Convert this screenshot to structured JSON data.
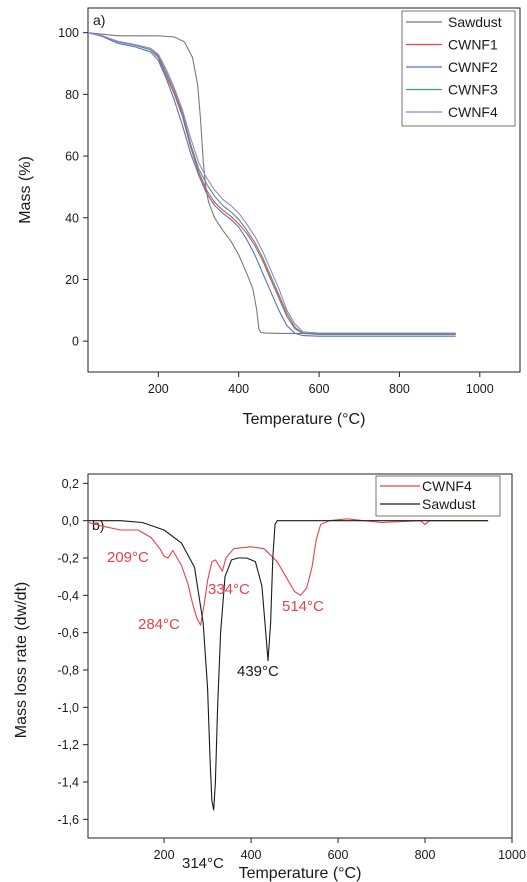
{
  "chart_data": [
    {
      "type": "line",
      "panel_label": "a)",
      "xlabel": "Temperature (°C)",
      "ylabel": "Mass (%)",
      "xlim": [
        25,
        1100
      ],
      "ylim": [
        -10,
        108
      ],
      "x_ticks": [
        200,
        400,
        600,
        800,
        1000
      ],
      "y_ticks": [
        0,
        20,
        40,
        60,
        80,
        100
      ],
      "grid": false,
      "legend": "top-right",
      "series": [
        {
          "name": "Sawdust",
          "color": "#7a7a7a",
          "points": [
            [
              25,
              100
            ],
            [
              60,
              99.5
            ],
            [
              100,
              99
            ],
            [
              150,
              99
            ],
            [
              200,
              99
            ],
            [
              240,
              98.6
            ],
            [
              265,
              97
            ],
            [
              285,
              92
            ],
            [
              298,
              83
            ],
            [
              305,
              72
            ],
            [
              312,
              58
            ],
            [
              318,
              50
            ],
            [
              325,
              45
            ],
            [
              340,
              40
            ],
            [
              360,
              36
            ],
            [
              380,
              32.5
            ],
            [
              400,
              28
            ],
            [
              420,
              22
            ],
            [
              435,
              17
            ],
            [
              445,
              10
            ],
            [
              450,
              4
            ],
            [
              455,
              2.8
            ],
            [
              470,
              2.6
            ],
            [
              500,
              2.5
            ],
            [
              600,
              2.5
            ],
            [
              700,
              2.5
            ],
            [
              800,
              2.5
            ],
            [
              940,
              2.5
            ]
          ]
        },
        {
          "name": "CWNF1",
          "color": "#e8424a",
          "points": [
            [
              25,
              100
            ],
            [
              60,
              99
            ],
            [
              100,
              97
            ],
            [
              140,
              96
            ],
            [
              180,
              94.5
            ],
            [
              200,
              92
            ],
            [
              220,
              86
            ],
            [
              240,
              80
            ],
            [
              260,
              73
            ],
            [
              280,
              63
            ],
            [
              300,
              55
            ],
            [
              320,
              49
            ],
            [
              340,
              45
            ],
            [
              360,
              42.5
            ],
            [
              380,
              40.5
            ],
            [
              400,
              38
            ],
            [
              420,
              35
            ],
            [
              440,
              31
            ],
            [
              460,
              26
            ],
            [
              480,
              20
            ],
            [
              500,
              14
            ],
            [
              520,
              8
            ],
            [
              540,
              4
            ],
            [
              560,
              2.5
            ],
            [
              600,
              2.2
            ],
            [
              700,
              2.2
            ],
            [
              800,
              2.2
            ],
            [
              940,
              2.2
            ]
          ]
        },
        {
          "name": "CWNF2",
          "color": "#4d74c4",
          "points": [
            [
              25,
              100
            ],
            [
              60,
              98.8
            ],
            [
              100,
              96.5
            ],
            [
              140,
              95.5
            ],
            [
              180,
              93.8
            ],
            [
              200,
              91
            ],
            [
              220,
              85
            ],
            [
              240,
              78
            ],
            [
              260,
              70
            ],
            [
              280,
              61
            ],
            [
              300,
              54
            ],
            [
              320,
              48
            ],
            [
              340,
              44
            ],
            [
              360,
              41.5
            ],
            [
              380,
              39.5
            ],
            [
              400,
              37
            ],
            [
              420,
              33
            ],
            [
              440,
              28
            ],
            [
              460,
              22
            ],
            [
              480,
              16
            ],
            [
              500,
              10
            ],
            [
              520,
              5
            ],
            [
              540,
              2.5
            ],
            [
              560,
              1.8
            ],
            [
              600,
              1.6
            ],
            [
              700,
              1.6
            ],
            [
              800,
              1.6
            ],
            [
              940,
              1.6
            ]
          ]
        },
        {
          "name": "CWNF3",
          "color": "#2fa37a",
          "points": [
            [
              25,
              100
            ],
            [
              60,
              99
            ],
            [
              100,
              97
            ],
            [
              140,
              96
            ],
            [
              180,
              94.5
            ],
            [
              200,
              92.5
            ],
            [
              220,
              87
            ],
            [
              240,
              81
            ],
            [
              260,
              74
            ],
            [
              280,
              64
            ],
            [
              300,
              56
            ],
            [
              320,
              51
            ],
            [
              340,
              47
            ],
            [
              360,
              44
            ],
            [
              380,
              42
            ],
            [
              400,
              39.5
            ],
            [
              420,
              36
            ],
            [
              440,
              32
            ],
            [
              460,
              27
            ],
            [
              480,
              21
            ],
            [
              500,
              15
            ],
            [
              520,
              9
            ],
            [
              540,
              4.5
            ],
            [
              560,
              2.6
            ],
            [
              600,
              2.3
            ],
            [
              700,
              2.3
            ],
            [
              800,
              2.3
            ],
            [
              940,
              2.3
            ]
          ]
        },
        {
          "name": "CWNF4",
          "color": "#a57bd0",
          "points": [
            [
              25,
              100
            ],
            [
              60,
              99
            ],
            [
              100,
              97.2
            ],
            [
              140,
              96.2
            ],
            [
              180,
              95
            ],
            [
              200,
              93
            ],
            [
              220,
              88
            ],
            [
              240,
              82
            ],
            [
              260,
              75
            ],
            [
              280,
              66
            ],
            [
              300,
              58
            ],
            [
              320,
              53
            ],
            [
              340,
              49
            ],
            [
              360,
              46
            ],
            [
              380,
              44
            ],
            [
              400,
              41.5
            ],
            [
              420,
              38
            ],
            [
              440,
              34
            ],
            [
              460,
              29
            ],
            [
              480,
              23
            ],
            [
              500,
              17
            ],
            [
              520,
              10
            ],
            [
              540,
              5.5
            ],
            [
              560,
              3
            ],
            [
              600,
              2.6
            ],
            [
              700,
              2.6
            ],
            [
              800,
              2.6
            ],
            [
              940,
              2.6
            ]
          ]
        }
      ]
    },
    {
      "type": "line",
      "panel_label": "b)",
      "xlabel": "Temperature (°C)",
      "ylabel": "Mass loss rate (dw/dt)",
      "xlim": [
        25,
        1000
      ],
      "ylim": [
        -1.7,
        0.25
      ],
      "x_ticks": [
        200,
        400,
        600,
        800,
        1000
      ],
      "y_ticks": [
        0.2,
        0.0,
        -0.2,
        -0.4,
        -0.6,
        -0.8,
        -1.0,
        -1.2,
        -1.4,
        -1.6
      ],
      "y_tick_labels": [
        "0,2",
        "0,0",
        "-0,2",
        "-0,4",
        "-0,6",
        "-0,8",
        "-1,0",
        "-1,2",
        "-1,4",
        "-1,6"
      ],
      "grid": false,
      "legend": "top-right",
      "series": [
        {
          "name": "CWNF4",
          "color": "#e8424a",
          "points": [
            [
              25,
              -0.01
            ],
            [
              60,
              -0.03
            ],
            [
              100,
              -0.05
            ],
            [
              140,
              -0.05
            ],
            [
              170,
              -0.09
            ],
            [
              190,
              -0.15
            ],
            [
              200,
              -0.19
            ],
            [
              209,
              -0.2
            ],
            [
              220,
              -0.16
            ],
            [
              240,
              -0.24
            ],
            [
              255,
              -0.34
            ],
            [
              265,
              -0.44
            ],
            [
              275,
              -0.52
            ],
            [
              284,
              -0.56
            ],
            [
              292,
              -0.45
            ],
            [
              300,
              -0.32
            ],
            [
              310,
              -0.22
            ],
            [
              318,
              -0.21
            ],
            [
              326,
              -0.24
            ],
            [
              334,
              -0.27
            ],
            [
              342,
              -0.2
            ],
            [
              360,
              -0.15
            ],
            [
              400,
              -0.14
            ],
            [
              430,
              -0.15
            ],
            [
              460,
              -0.22
            ],
            [
              480,
              -0.3
            ],
            [
              500,
              -0.38
            ],
            [
              514,
              -0.4
            ],
            [
              528,
              -0.36
            ],
            [
              540,
              -0.25
            ],
            [
              550,
              -0.1
            ],
            [
              560,
              -0.02
            ],
            [
              580,
              0
            ],
            [
              620,
              0.01
            ],
            [
              700,
              -0.01
            ],
            [
              790,
              0
            ],
            [
              800,
              -0.02
            ],
            [
              810,
              0
            ],
            [
              900,
              0
            ],
            [
              945,
              0
            ]
          ]
        },
        {
          "name": "Sawdust",
          "color": "#1a1a1a",
          "points": [
            [
              25,
              0
            ],
            [
              100,
              0
            ],
            [
              150,
              -0.01
            ],
            [
              200,
              -0.05
            ],
            [
              240,
              -0.12
            ],
            [
              270,
              -0.25
            ],
            [
              290,
              -0.55
            ],
            [
              300,
              -0.9
            ],
            [
              306,
              -1.3
            ],
            [
              310,
              -1.5
            ],
            [
              314,
              -1.55
            ],
            [
              318,
              -1.4
            ],
            [
              323,
              -1.0
            ],
            [
              330,
              -0.6
            ],
            [
              340,
              -0.3
            ],
            [
              355,
              -0.21
            ],
            [
              370,
              -0.2
            ],
            [
              390,
              -0.2
            ],
            [
              410,
              -0.22
            ],
            [
              425,
              -0.35
            ],
            [
              432,
              -0.55
            ],
            [
              439,
              -0.75
            ],
            [
              445,
              -0.55
            ],
            [
              450,
              -0.2
            ],
            [
              455,
              -0.02
            ],
            [
              460,
              0
            ],
            [
              600,
              0
            ],
            [
              800,
              0
            ],
            [
              945,
              0
            ]
          ]
        }
      ],
      "annotations": [
        {
          "text": "209°C",
          "color": "#e8424a"
        },
        {
          "text": "284°C",
          "color": "#e8424a"
        },
        {
          "text": "334°C",
          "color": "#e8424a"
        },
        {
          "text": "514°C",
          "color": "#e8424a"
        },
        {
          "text": "314°C",
          "color": "#1a1a1a"
        },
        {
          "text": "439°C",
          "color": "#1a1a1a"
        }
      ]
    }
  ]
}
